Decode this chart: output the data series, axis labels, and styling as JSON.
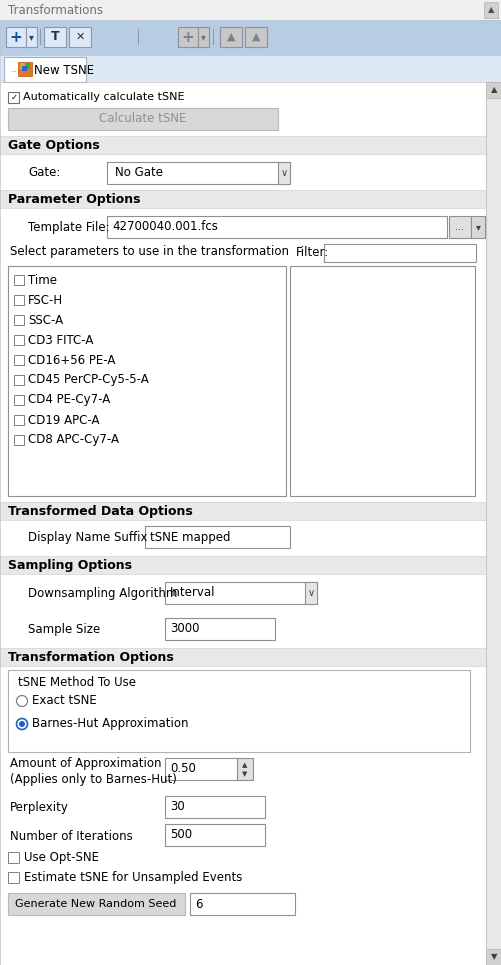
{
  "bg": "#f0f0f0",
  "white": "#ffffff",
  "toolbar_bg": "#b8cce4",
  "section_bg": "#e8e8e8",
  "border": "#a0a0a0",
  "dark_border": "#707070",
  "btn_bg": "#d4d4d4",
  "input_bg": "#ffffff",
  "title": "Transformations",
  "tab_label": "New TSNE",
  "auto_calc_label": "Automatically calculate tSNE",
  "calc_btn": "Calculate tSNE",
  "gate_options": "Gate Options",
  "gate_label": "Gate:",
  "gate_value": "No Gate",
  "param_options": "Parameter Options",
  "template_label": "Template File:",
  "template_value": "42700040.001.fcs",
  "select_label": "Select parameters to use in the transformation",
  "filter_label": "Filter:",
  "parameters": [
    "Time",
    "FSC-H",
    "SSC-A",
    "CD3 FITC-A",
    "CD16+56 PE-A",
    "CD45 PerCP-Cy5-5-A",
    "CD4 PE-Cy7-A",
    "CD19 APC-A",
    "CD8 APC-Cy7-A"
  ],
  "transformed_options": "Transformed Data Options",
  "display_suffix_label": "Display Name Suffix",
  "display_suffix_value": "tSNE mapped",
  "sampling_options": "Sampling Options",
  "downsample_label": "Downsampling Algorithm",
  "downsample_value": "Interval",
  "sample_size_label": "Sample Size",
  "sample_size_value": "3000",
  "transform_options": "Transformation Options",
  "tsne_method_label": "tSNE Method To Use",
  "exact_tsne": "Exact tSNE",
  "barnes_hut": "Barnes-Hut Approximation",
  "approx_label1": "Amount of Approximation",
  "approx_label2": "(Applies only to Barnes-Hut)",
  "approx_value": "0.50",
  "perplexity_label": "Perplexity",
  "perplexity_value": "30",
  "iterations_label": "Number of Iterations",
  "iterations_value": "500",
  "opt_sne_label": "Use Opt-SNE",
  "estimate_label": "Estimate tSNE for Unsampled Events",
  "seed_btn": "Generate New Random Seed",
  "seed_value": "6"
}
